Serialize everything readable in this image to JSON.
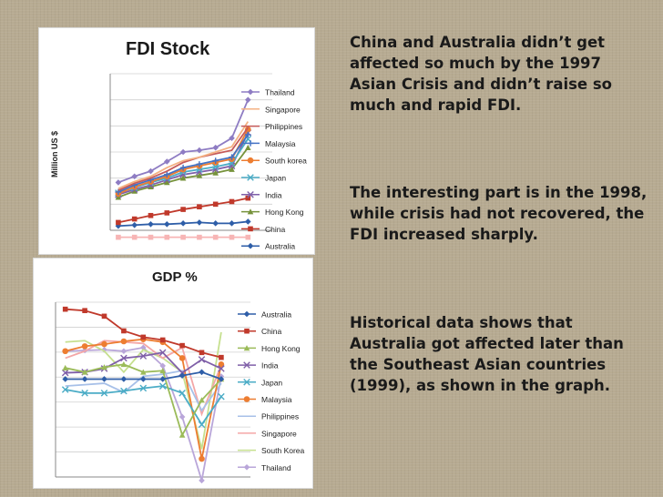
{
  "charts": [
    {
      "id": "fdi",
      "type": "line",
      "title": "FDI Stock",
      "ylabel": "Million US $",
      "xlabel": "",
      "x": [
        1,
        2,
        3,
        4,
        5,
        6,
        7,
        8,
        9,
        10
      ],
      "ylim": [
        0,
        180
      ],
      "series": [
        {
          "name": "Thailand",
          "color": "#8e7cc3",
          "marker": "diamond",
          "values": [
            55,
            62,
            68,
            79,
            90,
            92,
            95,
            106,
            150,
            0
          ]
        },
        {
          "name": "Singapore",
          "color": "#f4b183",
          "marker": "none",
          "values": [
            48,
            56,
            62,
            72,
            80,
            84,
            90,
            96,
            125,
            0
          ]
        },
        {
          "name": "Philippines",
          "color": "#c55a5a",
          "marker": "none",
          "values": [
            46,
            54,
            60,
            68,
            78,
            84,
            88,
            92,
            118,
            0
          ]
        },
        {
          "name": "Malaysia",
          "color": "#4472c4",
          "marker": "plus",
          "values": [
            44,
            52,
            58,
            64,
            72,
            76,
            80,
            84,
            110,
            0
          ]
        },
        {
          "name": "South korea",
          "color": "#ed7d31",
          "marker": "circle",
          "values": [
            42,
            50,
            56,
            62,
            70,
            74,
            78,
            82,
            116,
            0
          ]
        },
        {
          "name": "Japan",
          "color": "#4bacc6",
          "marker": "x",
          "values": [
            43,
            49,
            55,
            60,
            67,
            70,
            73,
            77,
            105,
            0
          ]
        },
        {
          "name": "India",
          "color": "#7f5fa8",
          "marker": "x",
          "values": [
            41,
            47,
            52,
            58,
            64,
            67,
            70,
            74,
            112,
            0
          ]
        },
        {
          "name": "Hong Kong",
          "color": "#77933c",
          "marker": "triangle",
          "values": [
            38,
            45,
            50,
            55,
            60,
            63,
            66,
            70,
            95,
            0
          ]
        },
        {
          "name": "China",
          "color": "#c0392b",
          "marker": "square",
          "values": [
            9,
            13,
            17,
            20,
            24,
            27,
            30,
            33,
            37,
            0
          ]
        },
        {
          "name": "Australia",
          "color": "#2e5ea8",
          "marker": "diamond",
          "values": [
            5,
            6,
            7,
            7,
            8,
            9,
            8,
            8,
            10,
            0
          ]
        },
        {
          "name": "",
          "color": "#f7b5b5",
          "marker": "square",
          "values": [
            -8,
            -8,
            -8,
            -8,
            -8,
            -8,
            -8,
            -8,
            -8,
            0
          ]
        }
      ]
    },
    {
      "id": "gdp",
      "type": "line",
      "title": "GDP %",
      "ylabel": "",
      "xlabel": "",
      "x": [
        1,
        2,
        3,
        4,
        5,
        6,
        7,
        8,
        9,
        10
      ],
      "ylim": [
        -10,
        15
      ],
      "series": [
        {
          "name": "Australia",
          "color": "#2e5ea8",
          "marker": "diamond",
          "values": [
            4.0,
            4.0,
            4.0,
            4.0,
            4.0,
            4.0,
            4.5,
            5.0,
            4.0,
            0
          ]
        },
        {
          "name": "China",
          "color": "#c0392b",
          "marker": "square",
          "values": [
            14.0,
            13.8,
            13.0,
            10.9,
            10.0,
            9.6,
            8.8,
            7.8,
            7.1,
            0
          ]
        },
        {
          "name": "Hong Kong",
          "color": "#9bbb59",
          "marker": "triangle",
          "values": [
            5.6,
            5.0,
            5.7,
            6.1,
            5.0,
            5.2,
            -4.0,
            1.0,
            4.0,
            0
          ]
        },
        {
          "name": "India",
          "color": "#7f5fa8",
          "marker": "x",
          "values": [
            4.9,
            5.0,
            5.5,
            7.0,
            7.3,
            7.8,
            4.9,
            6.8,
            5.5,
            0
          ]
        },
        {
          "name": "Japan",
          "color": "#4bacc6",
          "marker": "x",
          "values": [
            2.5,
            2.0,
            2.0,
            2.3,
            2.7,
            3.0,
            2.0,
            -2.5,
            1.5,
            0
          ]
        },
        {
          "name": "Malaysia",
          "color": "#ed7d31",
          "marker": "circle",
          "values": [
            8.0,
            8.7,
            9.0,
            9.4,
            9.7,
            9.3,
            7.0,
            -7.4,
            6.1,
            0
          ]
        },
        {
          "name": "Philippines",
          "color": "#a7c0e8",
          "marker": "none",
          "values": [
            3.0,
            3.2,
            3.4,
            2.1,
            4.4,
            4.7,
            5.2,
            -0.5,
            3.4,
            0
          ]
        },
        {
          "name": "Singapore",
          "color": "#f4a6a6",
          "marker": "none",
          "values": [
            7.0,
            8.0,
            9.5,
            9.3,
            9.1,
            7.0,
            8.5,
            -1.0,
            6.0,
            0
          ]
        },
        {
          "name": "South Korea",
          "color": "#c6e08f",
          "marker": "none",
          "values": [
            9.3,
            9.5,
            8.0,
            5.0,
            8.2,
            7.0,
            5.0,
            -6.0,
            10.7,
            0
          ]
        },
        {
          "name": "Thailand",
          "color": "#b9a6d9",
          "marker": "diamond",
          "values": [
            8.0,
            8.1,
            8.2,
            8.0,
            8.5,
            5.9,
            -1.4,
            -10.5,
            4.4,
            0
          ]
        }
      ]
    }
  ],
  "text": {
    "para1": "China and Australia didn’t get affected so much by the 1997 Asian Crisis and didn’t raise so much and rapid FDI.",
    "para2": "The interesting part is in the 1998, while crisis had not recovered, the FDI increased sharply.",
    "para3": "Historical data shows that Australia got affected later than the Southeast Asian countries (1999), as shown in the graph."
  }
}
